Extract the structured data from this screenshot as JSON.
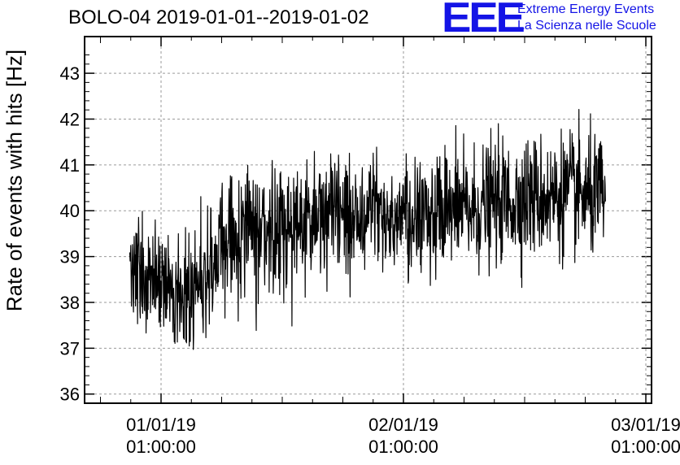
{
  "chart_data": {
    "type": "line",
    "title": "BOLO-04 2019-01-01--2019-01-02",
    "ylabel": "Rate of events with hits [Hz]",
    "xlabel": "",
    "ylim": [
      35.8,
      43.8
    ],
    "yticks": [
      "36",
      "37",
      "38",
      "39",
      "40",
      "41",
      "42",
      "43"
    ],
    "xticks": [
      {
        "date": "01/01/19",
        "time": "01:00:00"
      },
      {
        "date": "02/01/19",
        "time": "01:00:00"
      },
      {
        "date": "03/01/19",
        "time": "01:00:00"
      }
    ],
    "grid": true,
    "series": [
      {
        "color": "#000000",
        "x_hours": [
          0,
          1,
          2,
          3,
          4,
          5,
          6,
          7,
          8,
          9,
          10,
          11,
          12,
          13,
          14,
          15,
          16,
          17,
          18,
          19,
          20,
          21,
          22,
          23,
          24,
          25,
          26,
          27,
          28,
          29,
          30,
          31,
          32,
          33,
          34,
          35,
          36,
          37,
          38,
          39,
          40,
          41,
          42,
          43,
          44,
          45,
          46,
          47
        ],
        "trend": [
          38.7,
          38.6,
          38.5,
          38.4,
          38.3,
          38.3,
          38.3,
          38.5,
          38.8,
          39.1,
          39.4,
          39.5,
          39.6,
          39.6,
          39.6,
          39.7,
          39.7,
          39.8,
          39.8,
          39.9,
          39.9,
          39.9,
          39.9,
          39.9,
          39.9,
          39.9,
          39.9,
          39.9,
          39.9,
          39.9,
          39.9,
          39.9,
          39.9,
          40.0,
          40.0,
          40.1,
          40.2,
          40.2,
          40.2,
          40.3,
          40.3,
          40.3,
          40.3,
          40.4,
          40.4,
          40.3,
          40.3,
          40.3
        ],
        "noise_sd_hz": 0.65
      }
    ]
  },
  "logo": {
    "mark": "EEE",
    "line1": "Extreme Energy Events",
    "line2": "La Scienza nelle Scuole"
  }
}
